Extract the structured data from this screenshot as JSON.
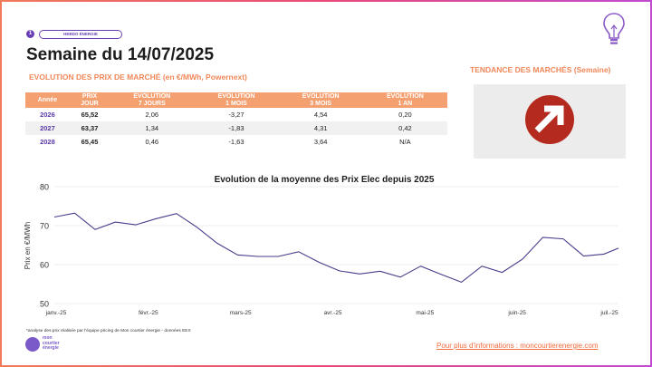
{
  "header": {
    "badge_number": "1",
    "badge_label": "HEBDO ÉNERGIE",
    "title": "Semaine du 14/07/2025",
    "subtitle": "EVOLUTION DES PRIX DE MARCHÉ (en €/MWh, Powernext)"
  },
  "trend": {
    "title": "TENDANCE DES MARCHÉS (Semaine)",
    "icon": "arrow-up-right-icon",
    "color": "#b52a1f"
  },
  "table": {
    "headers": [
      [
        "Année"
      ],
      [
        "PRIX",
        "JOUR"
      ],
      [
        "EVOLUTION",
        "7 JOURS"
      ],
      [
        "EVOLUTION",
        "1 MOIS"
      ],
      [
        "EVOLUTION",
        "3 MOIS"
      ],
      [
        "EVOLUTION",
        "1 AN"
      ]
    ],
    "rows": [
      [
        "2026",
        "65,52",
        "2,06",
        "-3,27",
        "4,54",
        "0,20"
      ],
      [
        "2027",
        "63,37",
        "1,34",
        "-1,83",
        "4,31",
        "0,42"
      ],
      [
        "2028",
        "65,45",
        "0,46",
        "-1,63",
        "3,64",
        "N/A"
      ]
    ]
  },
  "chart_data": {
    "type": "line",
    "title": "Evolution de la moyenne des Prix Elec depuis 2025",
    "xlabel": "",
    "ylabel": "Prix en €/MWh",
    "ylim": [
      50,
      80
    ],
    "yticks": [
      50,
      60,
      70,
      80
    ],
    "xticks": [
      "janv.-25",
      "févr.-25",
      "mars-25",
      "avr.-25",
      "mai-25",
      "juin-25",
      "juil.-25"
    ],
    "xlim": [
      "2025-01-01",
      "2025-07-14"
    ],
    "grid": true,
    "line_color": "#4a3a8a",
    "series": [
      {
        "x": [
          "2025-01-01",
          "2025-01-08",
          "2025-01-15",
          "2025-01-22",
          "2025-01-29",
          "2025-02-05",
          "2025-02-12",
          "2025-02-19",
          "2025-02-26",
          "2025-03-05",
          "2025-03-12",
          "2025-03-19",
          "2025-03-26",
          "2025-04-02",
          "2025-04-09",
          "2025-04-16",
          "2025-04-23",
          "2025-04-30",
          "2025-05-07",
          "2025-05-14",
          "2025-05-21",
          "2025-05-28",
          "2025-06-04",
          "2025-06-11",
          "2025-06-18",
          "2025-06-25",
          "2025-07-02",
          "2025-07-09",
          "2025-07-14"
        ],
        "values": [
          72.2,
          73.2,
          69.0,
          70.9,
          70.2,
          71.8,
          73.1,
          69.6,
          65.5,
          62.5,
          62.1,
          62.1,
          63.3,
          60.6,
          58.4,
          57.6,
          58.3,
          56.8,
          59.6,
          57.5,
          55.5,
          59.6,
          58.0,
          61.4,
          67.0,
          66.6,
          62.2,
          62.7,
          64.2
        ]
      }
    ]
  },
  "footer": {
    "footnote": "*analyse des prix réalisée par l'équipe pricing de Mon courtier énergie -  données EEX",
    "logo_text": "mon courtier énergie",
    "link": "Pour plus d'informations : moncourtierenergie.com"
  }
}
